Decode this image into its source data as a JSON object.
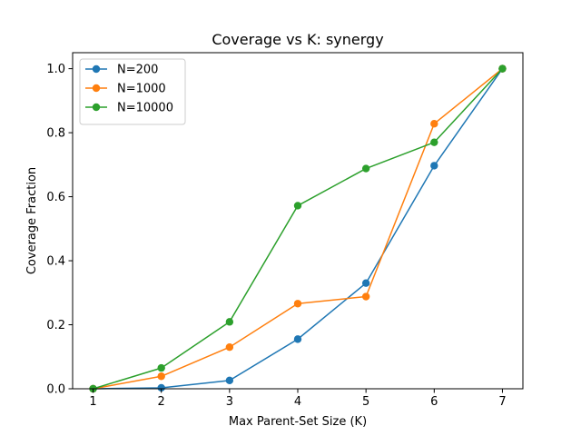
{
  "chart_data": {
    "type": "line",
    "title": "Coverage vs K: synergy",
    "xlabel": "Max Parent-Set Size (K)",
    "ylabel": "Coverage Fraction",
    "x": [
      1,
      2,
      3,
      4,
      5,
      6,
      7
    ],
    "xlim": [
      0.7,
      7.3
    ],
    "ylim": [
      0,
      1.05
    ],
    "xticks": [
      1,
      2,
      3,
      4,
      5,
      6,
      7
    ],
    "yticks": [
      0.0,
      0.2,
      0.4,
      0.6,
      0.8,
      1.0
    ],
    "xtick_labels": [
      "1",
      "2",
      "3",
      "4",
      "5",
      "6",
      "7"
    ],
    "ytick_labels": [
      "0.0",
      "0.2",
      "0.4",
      "0.6",
      "0.8",
      "1.0"
    ],
    "grid": false,
    "legend_position": "top-left",
    "series": [
      {
        "name": "N=200",
        "color": "#1f77b4",
        "values": [
          0.0,
          0.003,
          0.026,
          0.155,
          0.33,
          0.697,
          1.0
        ]
      },
      {
        "name": "N=1000",
        "color": "#ff7f0e",
        "values": [
          0.0,
          0.039,
          0.13,
          0.266,
          0.288,
          0.828,
          1.0
        ]
      },
      {
        "name": "N=10000",
        "color": "#2ca02c",
        "values": [
          0.0,
          0.065,
          0.209,
          0.572,
          0.688,
          0.77,
          1.0
        ]
      }
    ]
  }
}
